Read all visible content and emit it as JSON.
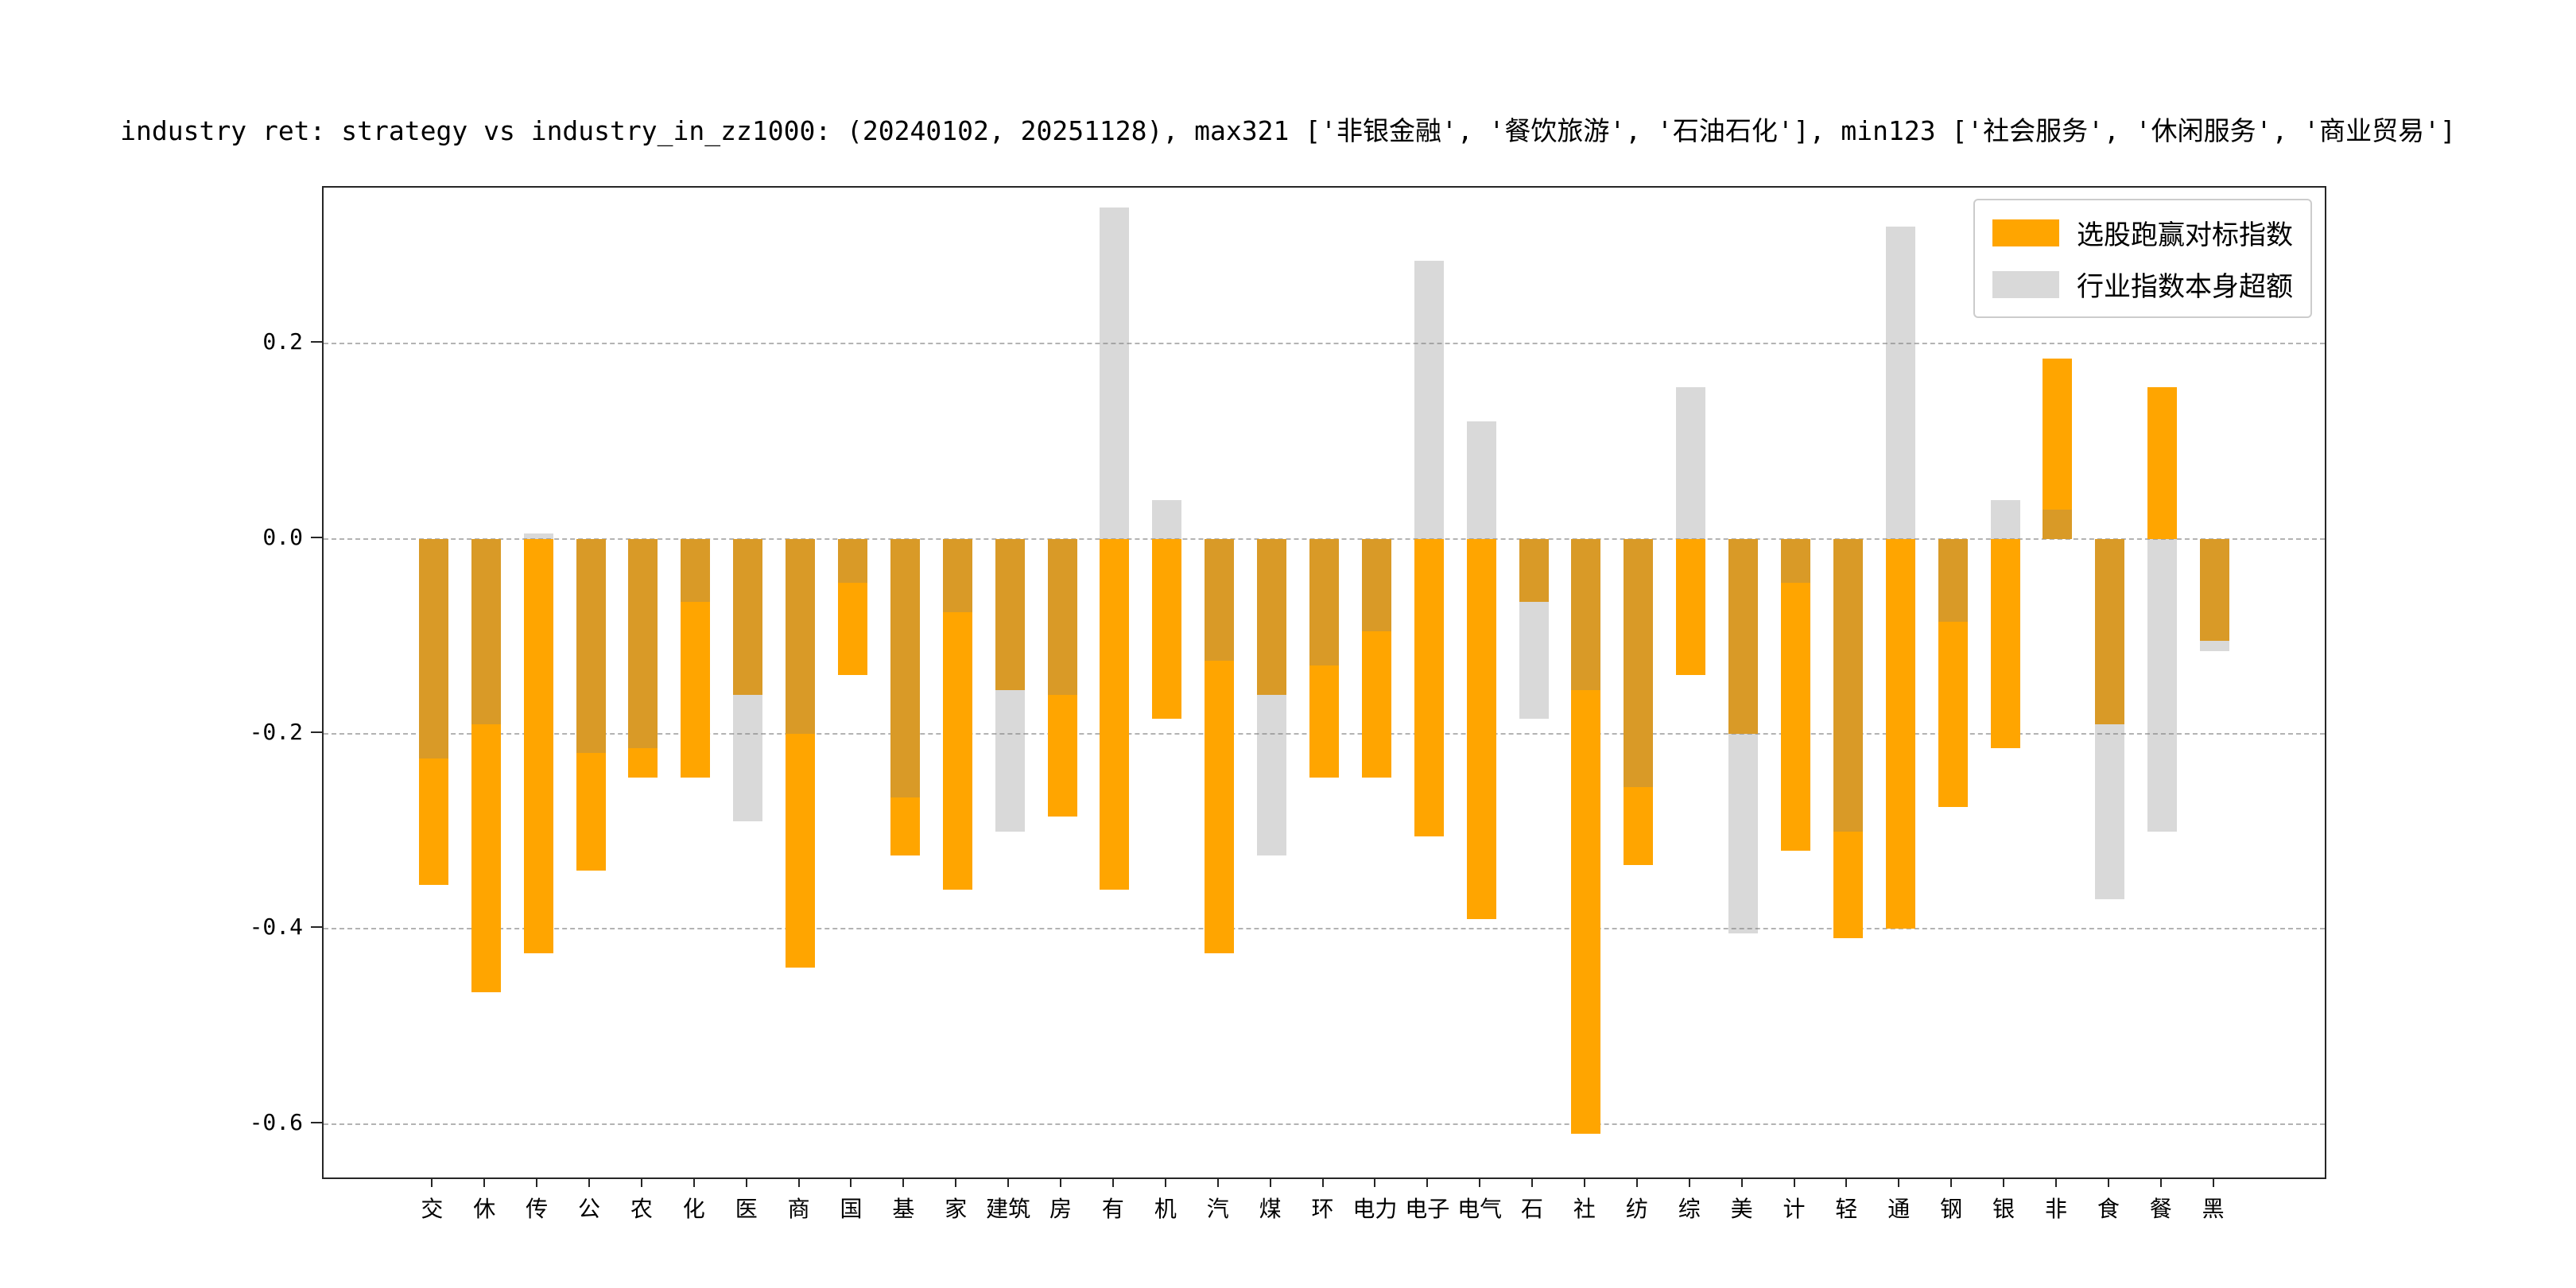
{
  "chart_data": {
    "type": "bar",
    "title": "industry ret: strategy vs industry_in_zz1000: (20240102, 20251128), max321 ['非银金融', '餐饮旅游', '石油石化'], min123 ['社会服务', '休闲服务', '商业贸易']",
    "categories": [
      "交",
      "休",
      "传",
      "公",
      "农",
      "化",
      "医",
      "商",
      "国",
      "基",
      "家",
      "建筑",
      "房",
      "有",
      "机",
      "汽",
      "煤",
      "环",
      "电力",
      "电子",
      "电气",
      "石",
      "社",
      "纺",
      "综",
      "美",
      "计",
      "轻",
      "通",
      "钢",
      "银",
      "非",
      "食",
      "餐",
      "黑"
    ],
    "series": [
      {
        "name": "选股跑赢对标指数",
        "color": "#FFA500",
        "alpha": 1.0,
        "values": [
          -0.355,
          -0.465,
          -0.425,
          -0.34,
          -0.245,
          -0.245,
          -0.16,
          -0.44,
          -0.14,
          -0.325,
          -0.36,
          -0.155,
          -0.285,
          -0.36,
          -0.185,
          -0.425,
          -0.16,
          -0.245,
          -0.245,
          -0.305,
          -0.39,
          -0.065,
          -0.61,
          -0.335,
          -0.14,
          -0.2,
          -0.32,
          -0.41,
          -0.4,
          -0.275,
          -0.215,
          0.185,
          -0.19,
          0.155,
          -0.105
        ]
      },
      {
        "name": "行业指数本身超额",
        "color": "#808080",
        "alpha": 0.3,
        "values": [
          -0.225,
          -0.19,
          0.005,
          -0.22,
          -0.215,
          -0.065,
          -0.29,
          -0.2,
          -0.045,
          -0.265,
          -0.075,
          -0.3,
          -0.16,
          0.34,
          0.04,
          -0.125,
          -0.325,
          -0.13,
          -0.095,
          0.285,
          0.12,
          -0.185,
          -0.155,
          -0.255,
          0.155,
          -0.405,
          -0.045,
          -0.3,
          0.32,
          -0.085,
          0.04,
          0.03,
          -0.37,
          -0.3,
          -0.115
        ]
      }
    ],
    "yticks": [
      {
        "label": "0.2",
        "value": 0.2
      },
      {
        "label": "0.0",
        "value": 0.0
      },
      {
        "label": "-0.2",
        "value": -0.2
      },
      {
        "label": "-0.4",
        "value": -0.4
      },
      {
        "label": "-0.6",
        "value": -0.6
      }
    ],
    "ylim": [
      -0.655,
      0.36
    ],
    "xlabel": "",
    "ylabel": "",
    "grid": "dashed-horizontal",
    "legend_position": "upper right"
  }
}
